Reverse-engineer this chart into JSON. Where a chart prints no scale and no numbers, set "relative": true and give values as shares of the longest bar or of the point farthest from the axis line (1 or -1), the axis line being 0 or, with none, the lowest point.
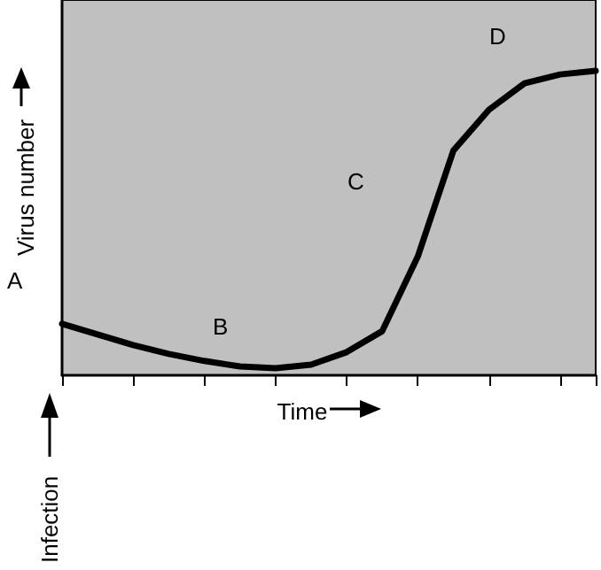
{
  "chart_data": {
    "type": "line",
    "relative": true,
    "xlabel": "Time",
    "ylabel": "Virus number",
    "categories": [
      null,
      null,
      null,
      null,
      null,
      null,
      null,
      null,
      null,
      null,
      null,
      null,
      null,
      null,
      null,
      null
    ],
    "series": [
      {
        "color": "#000000",
        "values": [
          0.169,
          0.134,
          0.099,
          0.07,
          0.047,
          0.029,
          0.023,
          0.035,
          0.076,
          0.145,
          0.39,
          0.738,
          0.872,
          0.959,
          0.988,
          1.0
        ]
      }
    ],
    "annotations": [
      "A",
      "B",
      "C",
      "D",
      "Infection"
    ],
    "grid": false,
    "marker": "none",
    "line_style": "solid"
  }
}
